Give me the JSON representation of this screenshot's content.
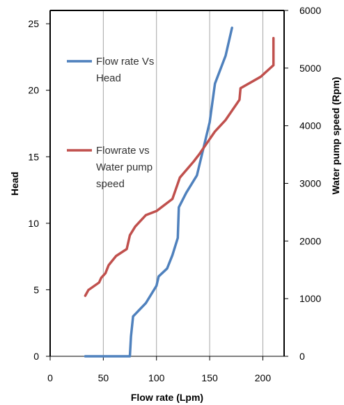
{
  "chart_data": {
    "type": "line",
    "title": "",
    "xlabel": "Flow rate (Lpm)",
    "ylabel": "Head",
    "y2label": "Water pump speed (Rpm)",
    "xlim": [
      0,
      220
    ],
    "ylim": [
      0,
      26
    ],
    "y2lim": [
      0,
      6000
    ],
    "xticks": [
      "0",
      "50",
      "100",
      "150",
      "200"
    ],
    "yticks": [
      "0",
      "5",
      "10",
      "15",
      "20",
      "25"
    ],
    "y2ticks": [
      "0",
      "1000",
      "2000",
      "3000",
      "4000",
      "5000",
      "6000"
    ],
    "grid": "vertical",
    "legend_position": "left-inside",
    "series": [
      {
        "name": "Flow rate Vs Head",
        "axis": "left",
        "color": "#4f81bd",
        "legend_lines": [
          "Flow rate Vs",
          "Head"
        ],
        "x": [
          33,
          75,
          76,
          78,
          90,
          100,
          102,
          110,
          115,
          120,
          121,
          128,
          138,
          150,
          155,
          165,
          171
        ],
        "y": [
          0,
          0,
          1.5,
          3.0,
          4.0,
          5.3,
          6.0,
          6.6,
          7.6,
          8.9,
          11.2,
          12.3,
          13.6,
          17.6,
          20.5,
          22.6,
          24.7
        ]
      },
      {
        "name": "Flowrate vs Water pump speed",
        "axis": "right",
        "color": "#c0504d",
        "legend_lines": [
          "Flowrate vs",
          "Water pump",
          "speed"
        ],
        "x": [
          33,
          36,
          46,
          48,
          52,
          55,
          62,
          72,
          75,
          80,
          90,
          100,
          115,
          122,
          135,
          140,
          155,
          165,
          178,
          179,
          198,
          210,
          210
        ],
        "y": [
          1050,
          1150,
          1280,
          1360,
          1440,
          1580,
          1740,
          1860,
          2100,
          2250,
          2450,
          2520,
          2730,
          3100,
          3380,
          3500,
          3900,
          4100,
          4450,
          4650,
          4850,
          5050,
          5520
        ]
      }
    ]
  }
}
